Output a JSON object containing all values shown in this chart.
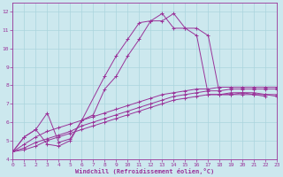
{
  "xlabel": "Windchill (Refroidissement éolien,°C)",
  "background_color": "#cce8ee",
  "grid_color": "#aad4dd",
  "line_color": "#993399",
  "xlim": [
    0,
    23
  ],
  "ylim": [
    4,
    12.5
  ],
  "xticks": [
    0,
    1,
    2,
    3,
    4,
    5,
    6,
    7,
    8,
    9,
    10,
    11,
    12,
    13,
    14,
    15,
    16,
    17,
    18,
    19,
    20,
    21,
    22,
    23
  ],
  "yticks": [
    4,
    5,
    6,
    7,
    8,
    9,
    10,
    11,
    12
  ],
  "series": [
    [
      4.4,
      5.2,
      5.6,
      6.5,
      4.9,
      5.1,
      6.1,
      8.5,
      9.6,
      10.5,
      11.4,
      11.5,
      11.9,
      11.1,
      11.1,
      10.7,
      7.5,
      7.5,
      7.6,
      7.6,
      7.5,
      7.4
    ],
    [
      4.4,
      5.2,
      5.6,
      4.8,
      4.7,
      5.0,
      6.1,
      6.4,
      7.8,
      8.5,
      9.6,
      10.5,
      11.5,
      11.5,
      11.9,
      11.1,
      11.1,
      10.7,
      7.5,
      7.5,
      7.6,
      7.6,
      7.5,
      7.4
    ],
    [
      4.4,
      4.8,
      5.2,
      5.5,
      5.7,
      5.9,
      6.1,
      6.3,
      6.5,
      6.7,
      6.9,
      7.1,
      7.3,
      7.5,
      7.6,
      7.7,
      7.8,
      7.8,
      7.9,
      7.9,
      7.9,
      7.9,
      7.9,
      7.9
    ],
    [
      4.4,
      4.6,
      4.9,
      5.1,
      5.3,
      5.5,
      5.8,
      6.0,
      6.2,
      6.4,
      6.6,
      6.8,
      7.0,
      7.2,
      7.4,
      7.5,
      7.6,
      7.7,
      7.7,
      7.8,
      7.8,
      7.8,
      7.8,
      7.8
    ],
    [
      4.4,
      4.5,
      4.7,
      5.0,
      5.2,
      5.4,
      5.6,
      5.8,
      6.0,
      6.2,
      6.4,
      6.6,
      6.8,
      7.0,
      7.2,
      7.3,
      7.4,
      7.5,
      7.5,
      7.5,
      7.5,
      7.5,
      7.5,
      7.5
    ]
  ],
  "series_x": [
    [
      0,
      1,
      2,
      3,
      4,
      5,
      6,
      8,
      9,
      10,
      11,
      12,
      13,
      14,
      15,
      16,
      17,
      18,
      19,
      20,
      21,
      22
    ],
    [
      0,
      1,
      2,
      3,
      4,
      5,
      6,
      7,
      8,
      9,
      10,
      11,
      12,
      13,
      14,
      15,
      16,
      17,
      18,
      19,
      20,
      21,
      22,
      23
    ],
    [
      0,
      1,
      2,
      3,
      4,
      5,
      6,
      7,
      8,
      9,
      10,
      11,
      12,
      13,
      14,
      15,
      16,
      17,
      18,
      19,
      20,
      21,
      22,
      23
    ],
    [
      0,
      1,
      2,
      3,
      4,
      5,
      6,
      7,
      8,
      9,
      10,
      11,
      12,
      13,
      14,
      15,
      16,
      17,
      18,
      19,
      20,
      21,
      22,
      23
    ],
    [
      0,
      1,
      2,
      3,
      4,
      5,
      6,
      7,
      8,
      9,
      10,
      11,
      12,
      13,
      14,
      15,
      16,
      17,
      18,
      19,
      20,
      21,
      22,
      23
    ]
  ]
}
